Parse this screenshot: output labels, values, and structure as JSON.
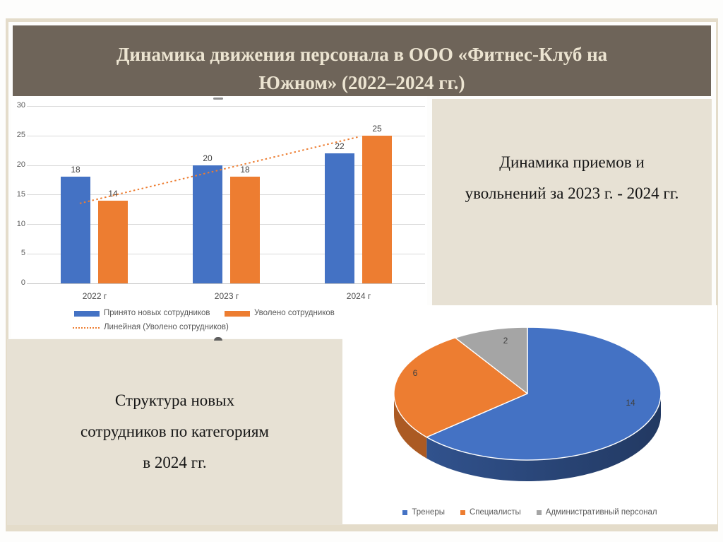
{
  "header": {
    "title": "Динамика движения персонала в ООО «Фитнес-Клуб на Южном» (2022–2024 гг.)",
    "title_lines": [
      "Динамика движения персонала в ООО «Фитнес-Клуб на",
      "Южном» (2022–2024 гг.)"
    ]
  },
  "right_note": {
    "lines": [
      "Динамика приемов и",
      "увольнений за 2023 г. - 2024 гг."
    ]
  },
  "left_note": {
    "lines": [
      "Структура новых",
      "сотрудников по категориям",
      "в 2024 гг."
    ]
  },
  "colors": {
    "header_bg": "#6e6459",
    "header_text": "#ece4d1",
    "note_bg": "#e7e1d4",
    "panel_bg": "#ffffff",
    "frame": "#e4dcca",
    "grid": "#d9d9d9",
    "axis_text": "#595959",
    "value_text": "#404040",
    "series_blue": "#4472c4",
    "series_orange": "#ed7d31",
    "series_gray": "#a5a5a5"
  },
  "chart_data": [
    {
      "type": "bar",
      "categories": [
        "2022 г",
        "2023 г",
        "2024 г"
      ],
      "series": [
        {
          "name": "Принято новых сотрудников",
          "color": "#4472c4",
          "values": [
            18,
            20,
            22
          ]
        },
        {
          "name": "Уволено сотрудников",
          "color": "#ed7d31",
          "values": [
            14,
            18,
            25
          ]
        }
      ],
      "trendline": {
        "name": "Линейная (Уволено сотрудников)",
        "color": "#ed7d31",
        "style": "dotted",
        "start_value": 13.5,
        "end_value": 24.8
      },
      "y_ticks": [
        0,
        5,
        10,
        15,
        20,
        25,
        30
      ],
      "ylim": [
        0,
        30
      ],
      "grid": true,
      "data_labels": true,
      "legend_position": "bottom"
    },
    {
      "type": "pie",
      "style": "3d",
      "labels": [
        "Тренеры",
        "Специалисты",
        "Административный персонал"
      ],
      "values": [
        14,
        6,
        2
      ],
      "colors": [
        "#4472c4",
        "#ed7d31",
        "#a5a5a5"
      ],
      "start_angle_deg": 0,
      "direction": "clockwise",
      "data_labels": true,
      "legend_position": "bottom"
    }
  ]
}
